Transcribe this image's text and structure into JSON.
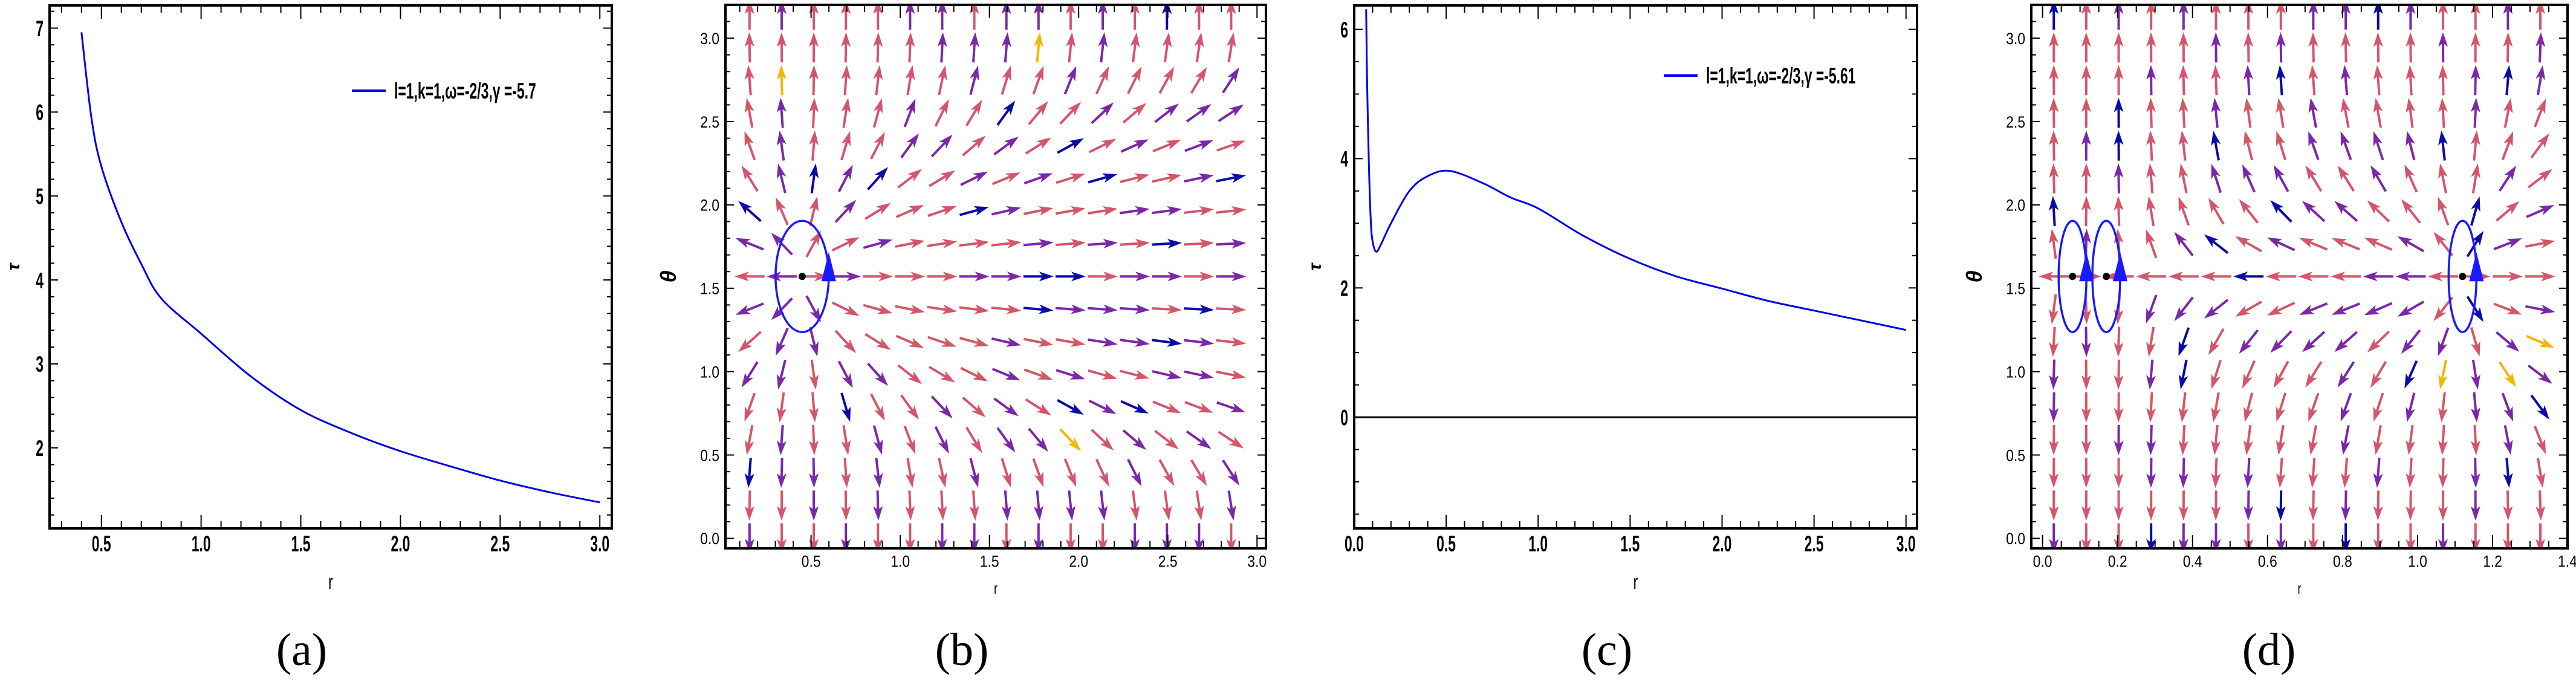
{
  "colors": {
    "curve": "#0000e6",
    "arrow_pink": "#d4566a",
    "arrow_purple": "#7b28a8",
    "arrow_blue": "#0a0aa8",
    "arrow_yellow": "#f2b705",
    "zero_line": "#000000",
    "ellipse": "#1a1aff"
  },
  "chart_data": [
    {
      "panel": "a",
      "type": "line",
      "caption": "(a)",
      "xlabel": "r",
      "ylabel": "τ",
      "xlim": [
        0.24,
        3.06
      ],
      "ylim": [
        1.04,
        7.27
      ],
      "xticks": [
        "0.5",
        "1.0",
        "1.5",
        "2.0",
        "2.5",
        "3.0"
      ],
      "yticks": [
        "2",
        "3",
        "4",
        "5",
        "6",
        "7"
      ],
      "legend": {
        "label": "l=1,k=1,ω=-2/3,γ =-5.7",
        "position": "top-right"
      },
      "series": [
        {
          "name": "l=1,k=1,ω=-2/3,γ =-5.7",
          "x": [
            0.4,
            0.45,
            0.5,
            0.6,
            0.7,
            0.8,
            1.0,
            1.25,
            1.5,
            1.75,
            2.0,
            2.25,
            2.5,
            2.75,
            3.0
          ],
          "y": [
            6.95,
            5.93,
            5.35,
            4.69,
            4.19,
            3.78,
            3.36,
            2.85,
            2.45,
            2.18,
            1.96,
            1.78,
            1.61,
            1.47,
            1.35
          ]
        }
      ]
    },
    {
      "panel": "b",
      "type": "vector_field",
      "caption": "(b)",
      "xlabel": "r",
      "ylabel": "θ",
      "xlim": [
        0.02,
        3.05
      ],
      "ylim": [
        -0.06,
        3.2
      ],
      "xticks": [
        "0.5",
        "1.0",
        "1.5",
        "2.0",
        "2.5",
        "3.0"
      ],
      "yticks": [
        "0.0",
        "0.5",
        "1.0",
        "1.5",
        "2.0",
        "2.5",
        "3.0"
      ],
      "grid": {
        "r_start": 0.155,
        "r_step": 0.18,
        "r_count": 16,
        "theta_count": 17
      },
      "field": {
        "phi_r_zeros": [
          0.45
        ],
        "phi_r_scale": 1.7,
        "phi_theta": "-cot(θ)csc(θ)"
      },
      "critical_points": [
        {
          "r": 0.45,
          "theta": 1.5708
        }
      ]
    },
    {
      "panel": "c",
      "type": "line",
      "caption": "(c)",
      "xlabel": "r",
      "ylabel": "τ",
      "xlim": [
        0,
        3.06
      ],
      "ylim": [
        -1.72,
        6.37
      ],
      "xticks": [
        "0.0",
        "0.5",
        "1.0",
        "1.5",
        "2.0",
        "2.5",
        "3.0"
      ],
      "yticks": [
        "0",
        "2",
        "4",
        "6"
      ],
      "legend": {
        "label": "l=1,k=1,ω=-2/3,γ =-5.61",
        "position": "top-right"
      },
      "reference_line": {
        "y": 0
      },
      "series": [
        {
          "name": "l=1,k=1,ω=-2/3,γ =-5.61",
          "x": [
            0.065,
            0.07,
            0.08,
            0.09,
            0.1,
            0.12,
            0.15,
            0.2,
            0.3,
            0.4,
            0.52,
            0.7,
            0.85,
            1.0,
            1.25,
            1.5,
            1.75,
            2.0,
            2.25,
            2.5,
            2.75,
            3.0
          ],
          "y": [
            6.31,
            5.2,
            3.9,
            3.05,
            2.72,
            2.56,
            2.7,
            3.0,
            3.5,
            3.73,
            3.81,
            3.62,
            3.4,
            3.23,
            2.8,
            2.45,
            2.18,
            1.99,
            1.8,
            1.65,
            1.5,
            1.35
          ]
        }
      ]
    },
    {
      "panel": "d",
      "type": "vector_field",
      "caption": "(d)",
      "xlabel": "r",
      "ylabel": "θ",
      "xlim": [
        -0.03,
        1.4
      ],
      "ylim": [
        -0.06,
        3.2
      ],
      "xticks": [
        "0.0",
        "0.2",
        "0.4",
        "0.6",
        "0.8",
        "1.0",
        "1.2",
        "1.4"
      ],
      "yticks": [
        "0.0",
        "0.5",
        "1.0",
        "1.5",
        "2.0",
        "2.5",
        "3.0"
      ],
      "grid": {
        "r_start": 0.03,
        "r_step": 0.0865,
        "r_count": 16,
        "theta_count": 17
      },
      "field": {
        "phi_r_zeros": [
          0.08,
          0.17,
          1.12
        ],
        "phi_r_scale": 3.5,
        "phi_theta": "-cot(θ)csc(θ)"
      },
      "critical_points": [
        {
          "r": 0.08,
          "theta": 1.5708
        },
        {
          "r": 0.17,
          "theta": 1.5708
        },
        {
          "r": 1.12,
          "theta": 1.5708
        }
      ]
    }
  ]
}
